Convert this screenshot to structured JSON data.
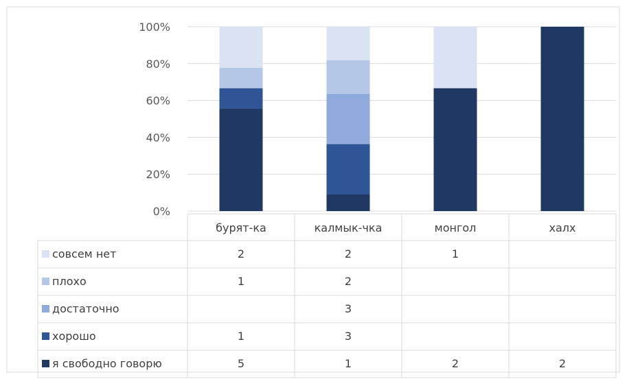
{
  "chart_data": {
    "type": "bar",
    "stacked": "percent",
    "categories": [
      "бурят-ка",
      "калмык-чка",
      "монгол",
      "халх"
    ],
    "series": [
      {
        "name": "я свободно говорю",
        "values": [
          5,
          1,
          2,
          2
        ],
        "color": "#203864"
      },
      {
        "name": "хорошо",
        "values": [
          1,
          3,
          null,
          null
        ],
        "color": "#2F5597"
      },
      {
        "name": "достаточно",
        "values": [
          null,
          3,
          null,
          null
        ],
        "color": "#8FAADC"
      },
      {
        "name": "плохо",
        "values": [
          1,
          2,
          null,
          null
        ],
        "color": "#B4C7E7"
      },
      {
        "name": "совсем нет",
        "values": [
          2,
          2,
          1,
          null
        ],
        "color": "#DAE3F3"
      }
    ],
    "y_ticks": [
      "0%",
      "20%",
      "40%",
      "60%",
      "80%",
      "100%"
    ],
    "ylim": [
      0,
      100
    ],
    "grid": true,
    "data_table": true,
    "table_row_order": [
      "совсем нет",
      "плохо",
      "достаточно",
      "хорошо",
      "я свободно говорю"
    ]
  }
}
